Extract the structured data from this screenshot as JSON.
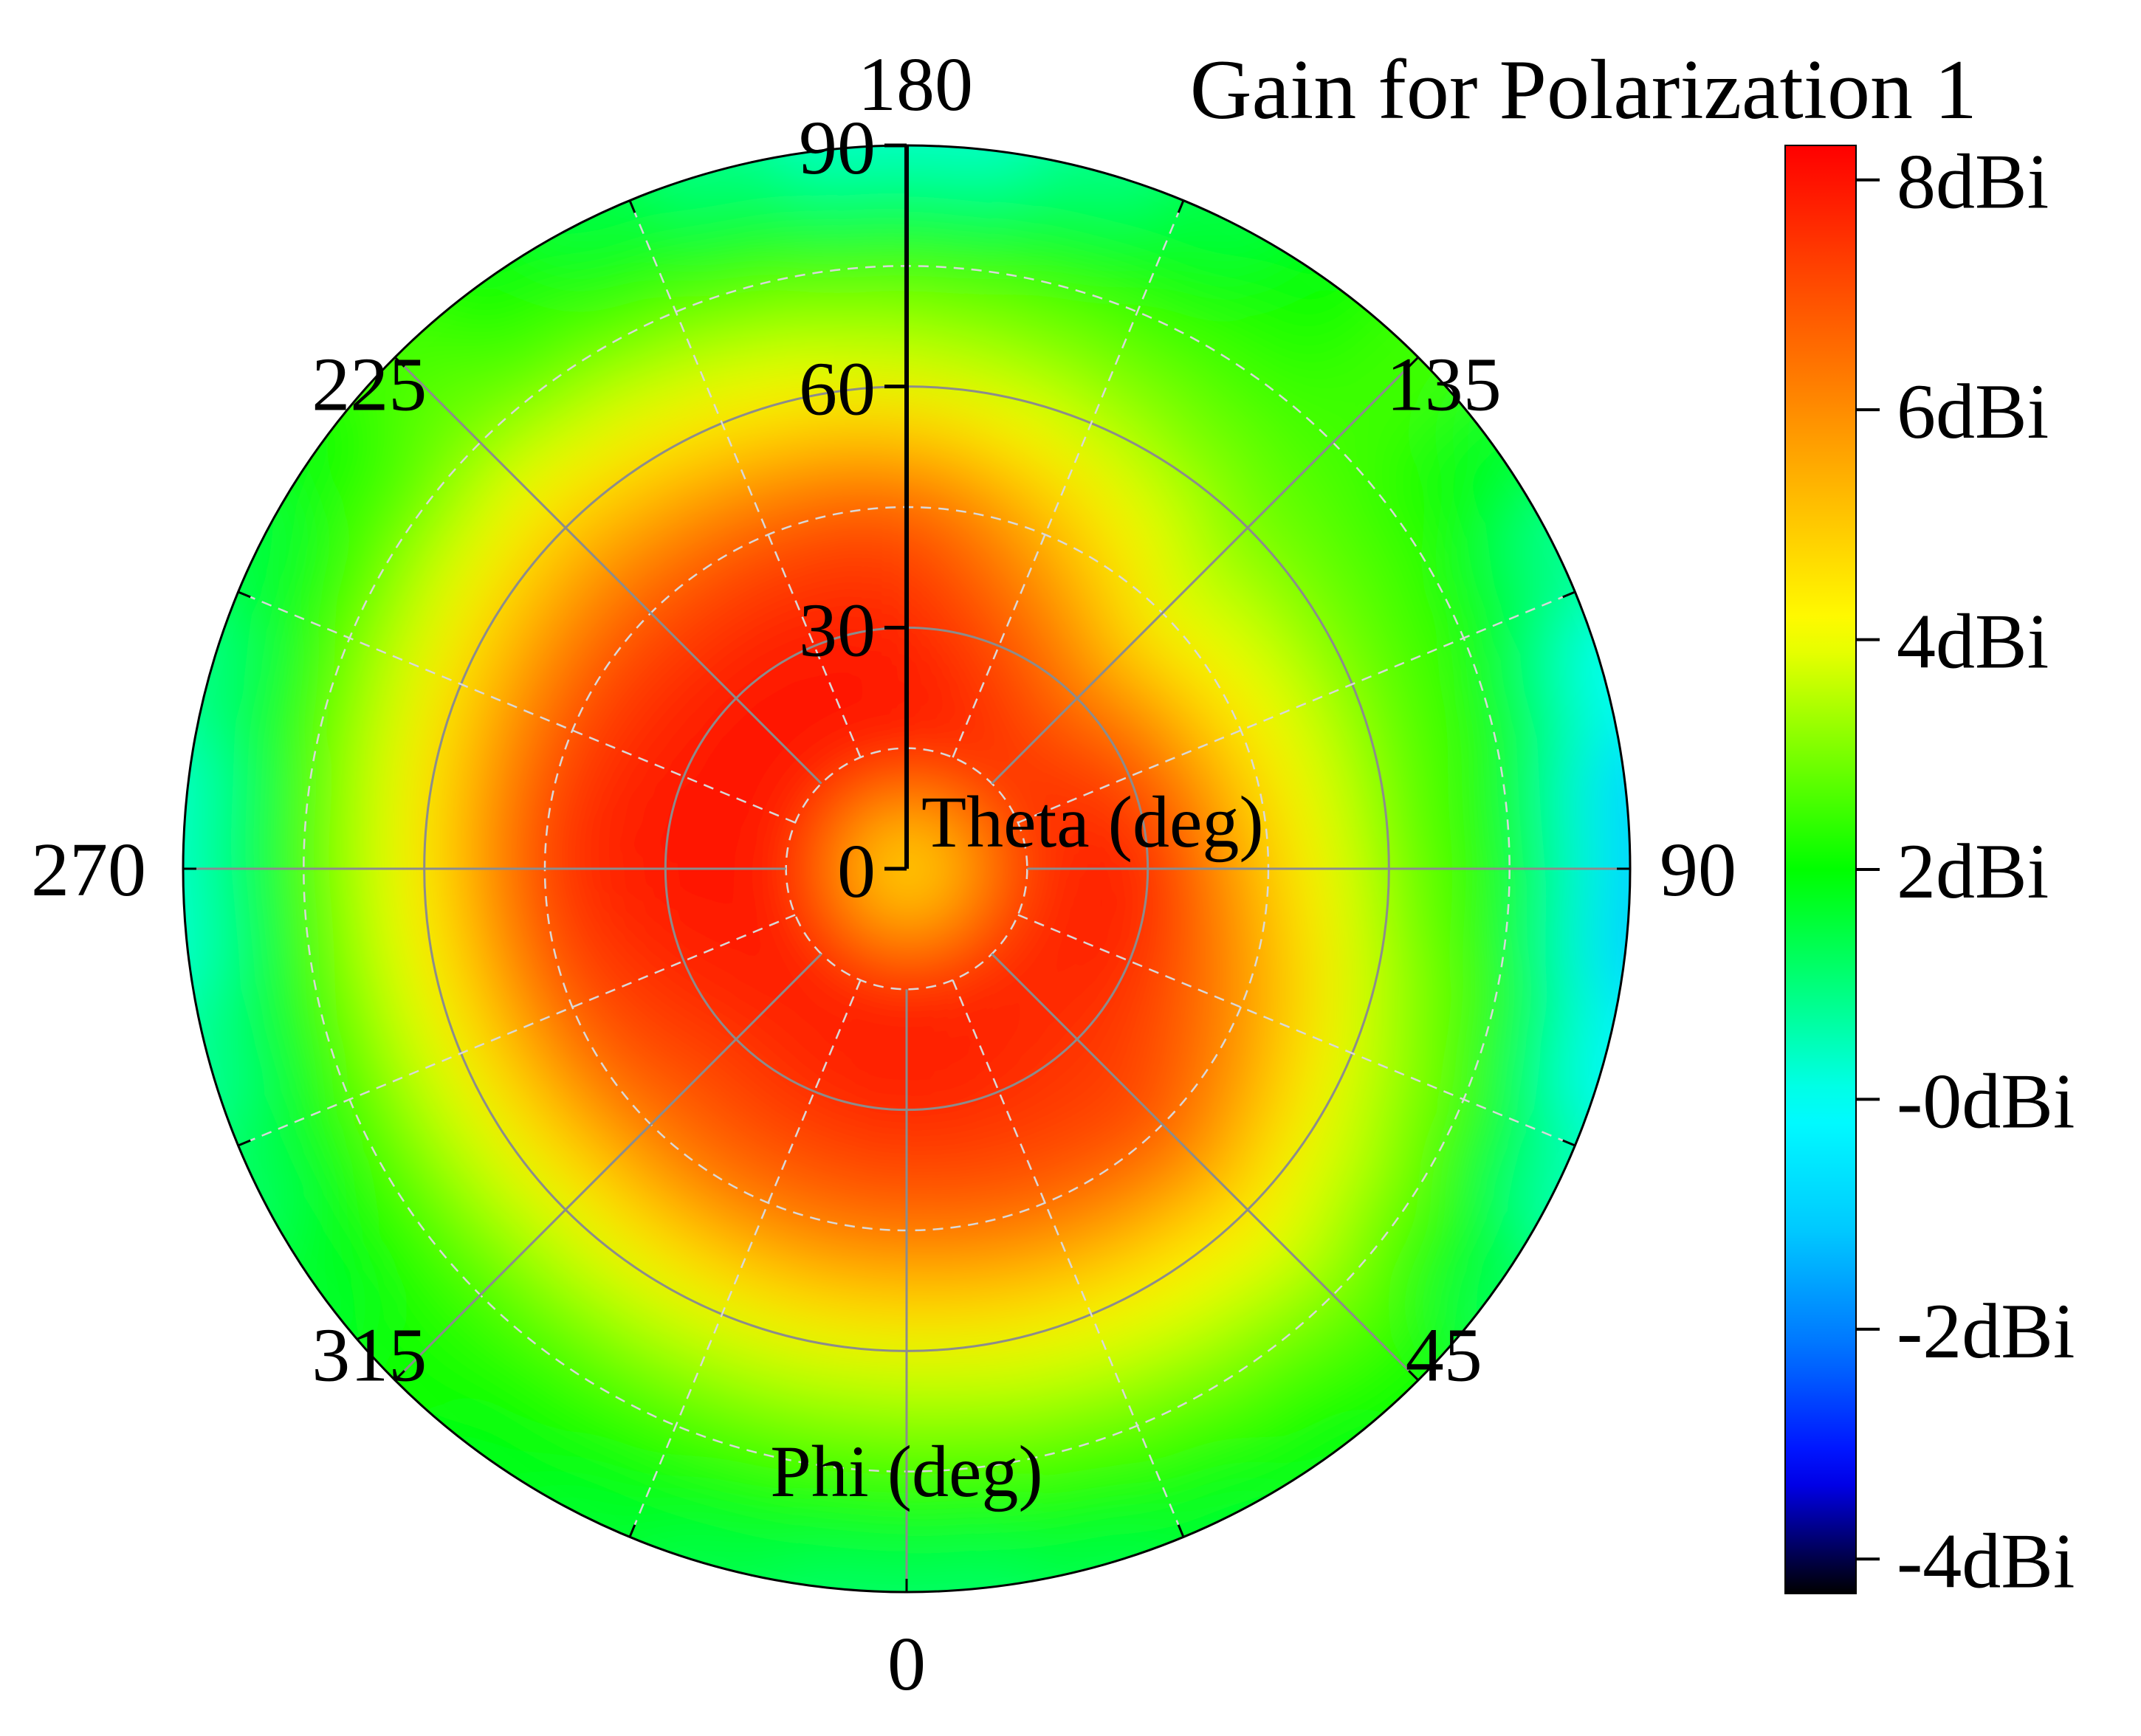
{
  "chart_data": {
    "type": "heatmap",
    "projection": "polar",
    "title": "Gain for Polarization 1",
    "theta_axis": {
      "label": "Theta (deg)",
      "range": [
        0,
        90
      ],
      "ticks": [
        "0",
        "30",
        "60",
        "90"
      ]
    },
    "phi_axis": {
      "label": "Phi (deg)",
      "ticks": [
        {
          "angle": 0,
          "label": "0"
        },
        {
          "angle": 45,
          "label": "45"
        },
        {
          "angle": 90,
          "label": "90"
        },
        {
          "angle": 135,
          "label": "135"
        },
        {
          "angle": 180,
          "label": "180"
        },
        {
          "angle": 225,
          "label": "225"
        },
        {
          "angle": 270,
          "label": "270"
        },
        {
          "angle": 315,
          "label": "315"
        }
      ],
      "zero_direction": "bottom",
      "direction": "counter-clockwise"
    },
    "grid": true,
    "colorbar": {
      "range": [
        -4.3,
        8.3
      ],
      "unit": "dBi",
      "placement": "right",
      "ticks": [
        {
          "value": 8,
          "label": "8dBi"
        },
        {
          "value": 6,
          "label": "6dBi"
        },
        {
          "value": 4,
          "label": "4dBi"
        },
        {
          "value": 2,
          "label": "2dBi"
        },
        {
          "value": 0,
          "label": "-0dBi"
        },
        {
          "value": -2,
          "label": "-2dBi"
        },
        {
          "value": -4,
          "label": "-4dBi"
        }
      ],
      "colors": [
        "#000000",
        "#0000ff",
        "#0070ff",
        "#00c8ff",
        "#00ffff",
        "#00ff80",
        "#00ff00",
        "#80ff00",
        "#ffff00",
        "#ffc000",
        "#ff8000",
        "#ff4000",
        "#ff0000"
      ]
    },
    "gain_dbi_approx": {
      "theta_deg": [
        0,
        15,
        30,
        45,
        60,
        75,
        90
      ],
      "phi_deg": [
        0,
        45,
        90,
        135,
        180,
        225,
        270,
        315
      ],
      "values": [
        [
          4.0,
          7.8,
          7.8,
          6.5,
          4.0,
          2.5,
          1.0
        ],
        [
          4.0,
          7.8,
          7.5,
          7.0,
          4.5,
          3.0,
          2.0
        ],
        [
          4.0,
          7.5,
          8.0,
          5.0,
          3.0,
          2.0,
          -1.5
        ],
        [
          4.0,
          7.8,
          6.5,
          4.0,
          3.0,
          2.5,
          2.5
        ],
        [
          4.0,
          8.0,
          7.8,
          7.0,
          4.0,
          2.5,
          0.0
        ],
        [
          4.0,
          8.0,
          8.0,
          7.0,
          5.0,
          3.0,
          2.5
        ],
        [
          4.0,
          8.0,
          8.0,
          7.5,
          4.5,
          2.5,
          0.0
        ],
        [
          4.0,
          8.0,
          7.5,
          6.5,
          4.0,
          2.5,
          2.0
        ]
      ]
    }
  }
}
